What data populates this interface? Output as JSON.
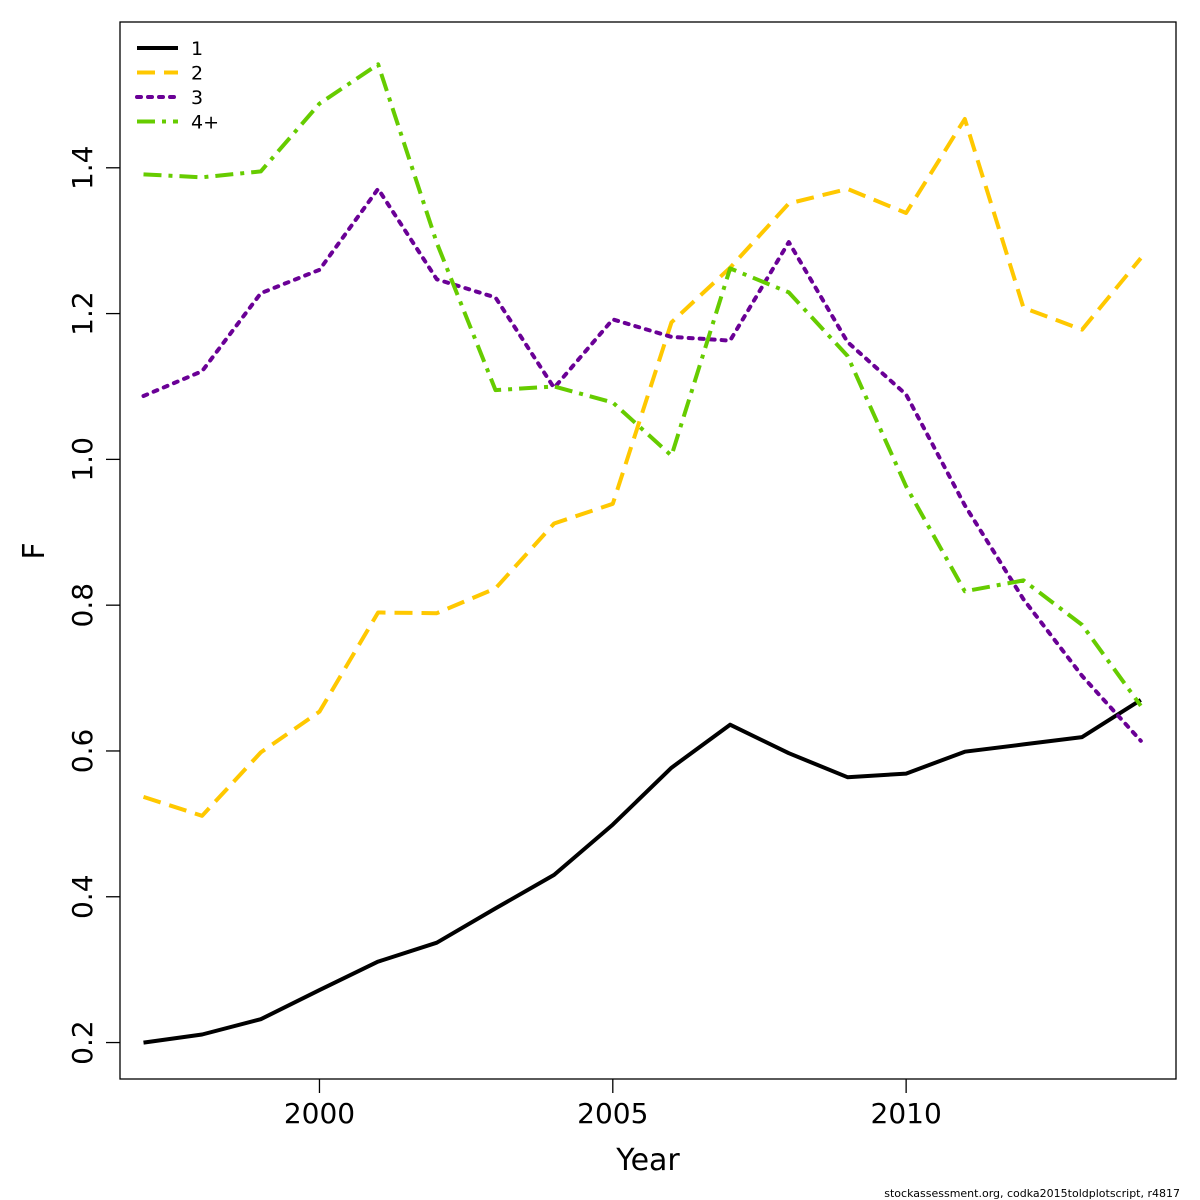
{
  "chart_data": {
    "type": "line",
    "xlabel": "Year",
    "ylabel": "F",
    "xlim": [
      1996.6,
      2014.6
    ],
    "ylim": [
      0.15,
      1.6
    ],
    "x_ticks": [
      2000,
      2005,
      2010
    ],
    "y_ticks": [
      0.2,
      0.4,
      0.6,
      0.8,
      1.0,
      1.2,
      1.4
    ],
    "x_tick_labels": [
      "2000",
      "2005",
      "2010"
    ],
    "y_tick_labels": [
      "0.2",
      "0.4",
      "0.6",
      "0.8",
      "1.0",
      "1.2",
      "1.4"
    ],
    "grid": false,
    "legend_position": "top-left",
    "x": [
      1997,
      1998,
      1999,
      2000,
      2001,
      2002,
      2003,
      2004,
      2005,
      2006,
      2007,
      2008,
      2009,
      2010,
      2011,
      2012,
      2013,
      2014
    ],
    "series": [
      {
        "name": "1",
        "color": "#000000",
        "dash": "solid",
        "values": [
          0.2,
          0.211,
          0.232,
          0.272,
          0.311,
          0.337,
          0.384,
          0.43,
          0.499,
          0.577,
          0.636,
          0.597,
          0.564,
          0.569,
          0.599,
          0.609,
          0.619,
          0.67
        ]
      },
      {
        "name": "2",
        "color": "#FFC800",
        "dash": "dashed",
        "values": [
          0.537,
          0.511,
          0.598,
          0.654,
          0.79,
          0.789,
          0.823,
          0.912,
          0.939,
          1.188,
          1.263,
          1.351,
          1.371,
          1.338,
          1.467,
          1.208,
          1.178,
          1.276
        ]
      },
      {
        "name": "3",
        "color": "#6A0096",
        "dash": "dotted",
        "values": [
          1.087,
          1.121,
          1.228,
          1.26,
          1.371,
          1.247,
          1.222,
          1.098,
          1.192,
          1.168,
          1.163,
          1.298,
          1.161,
          1.089,
          0.937,
          0.808,
          0.703,
          0.614
        ]
      },
      {
        "name": "4+",
        "color": "#66CC00",
        "dash": "dashdot",
        "values": [
          1.391,
          1.387,
          1.395,
          1.488,
          1.542,
          1.297,
          1.095,
          1.1,
          1.078,
          1.005,
          1.262,
          1.229,
          1.142,
          0.963,
          0.819,
          0.834,
          0.773,
          0.662
        ]
      }
    ]
  },
  "footnote": "stockassessment.org, codka2015toldplotscript, r4817"
}
